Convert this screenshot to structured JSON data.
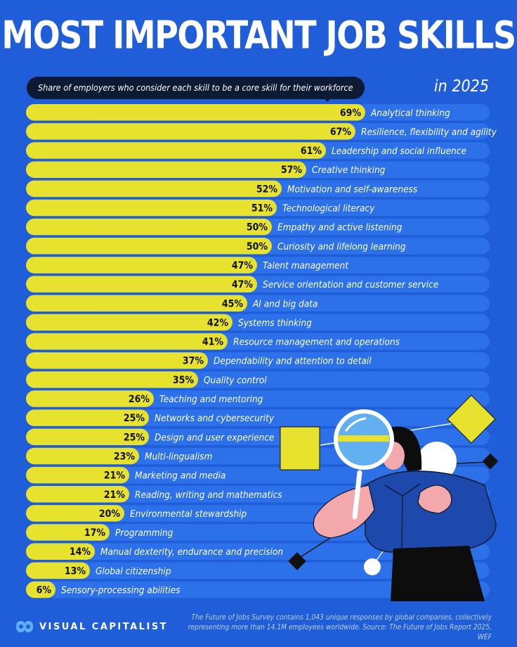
{
  "title": "MOST IMPORTANT JOB SKILLS",
  "subtitle": "Share of employers who consider each skill to be a core skill for their workforce",
  "year_label": "in 2025",
  "brand": "VISUAL CAPITALIST",
  "footnote_line1": "The Future of Jobs Survey contains 1,043 unique responses by global companies, collectively",
  "footnote_line2": "representing more than 14.1M employees worldwide. Source: The Future of Jobs Report 2025, WEF",
  "colors": {
    "background": "#1f5ed8",
    "track": "#2c71ea",
    "bar": "#e6e22d",
    "title_text": "#ffffff",
    "subtitle_pill": "#0d1a33"
  },
  "chart_data": {
    "type": "bar",
    "orientation": "horizontal",
    "value_suffix": "%",
    "xlim": [
      0,
      100
    ],
    "grid": false,
    "categories": [
      "Analytical thinking",
      "Resilience, flexibility and agility",
      "Leadership and social influence",
      "Creative thinking",
      "Motivation and self-awareness",
      "Technological literacy",
      "Empathy and active listening",
      "Curiosity and lifelong learning",
      "Talent management",
      "Service orientation and customer service",
      "AI and big data",
      "Systems thinking",
      "Resource management and operations",
      "Dependability and attention to detail",
      "Quality control",
      "Teaching and mentoring",
      "Networks and cybersecurity",
      "Design and user experience",
      "Multi-lingualism",
      "Marketing and media",
      "Reading, writing and mathematics",
      "Environmental stewardship",
      "Programming",
      "Manual dexterity, endurance and precision",
      "Global citizenship",
      "Sensory-processing abilities"
    ],
    "values": [
      69,
      67,
      61,
      57,
      52,
      51,
      50,
      50,
      47,
      47,
      45,
      42,
      41,
      37,
      35,
      26,
      25,
      25,
      23,
      21,
      21,
      20,
      17,
      14,
      13,
      6
    ],
    "title": "MOST IMPORTANT JOB SKILLS",
    "subtitle": "Share of employers who consider each skill to be a core skill for their workforce"
  }
}
